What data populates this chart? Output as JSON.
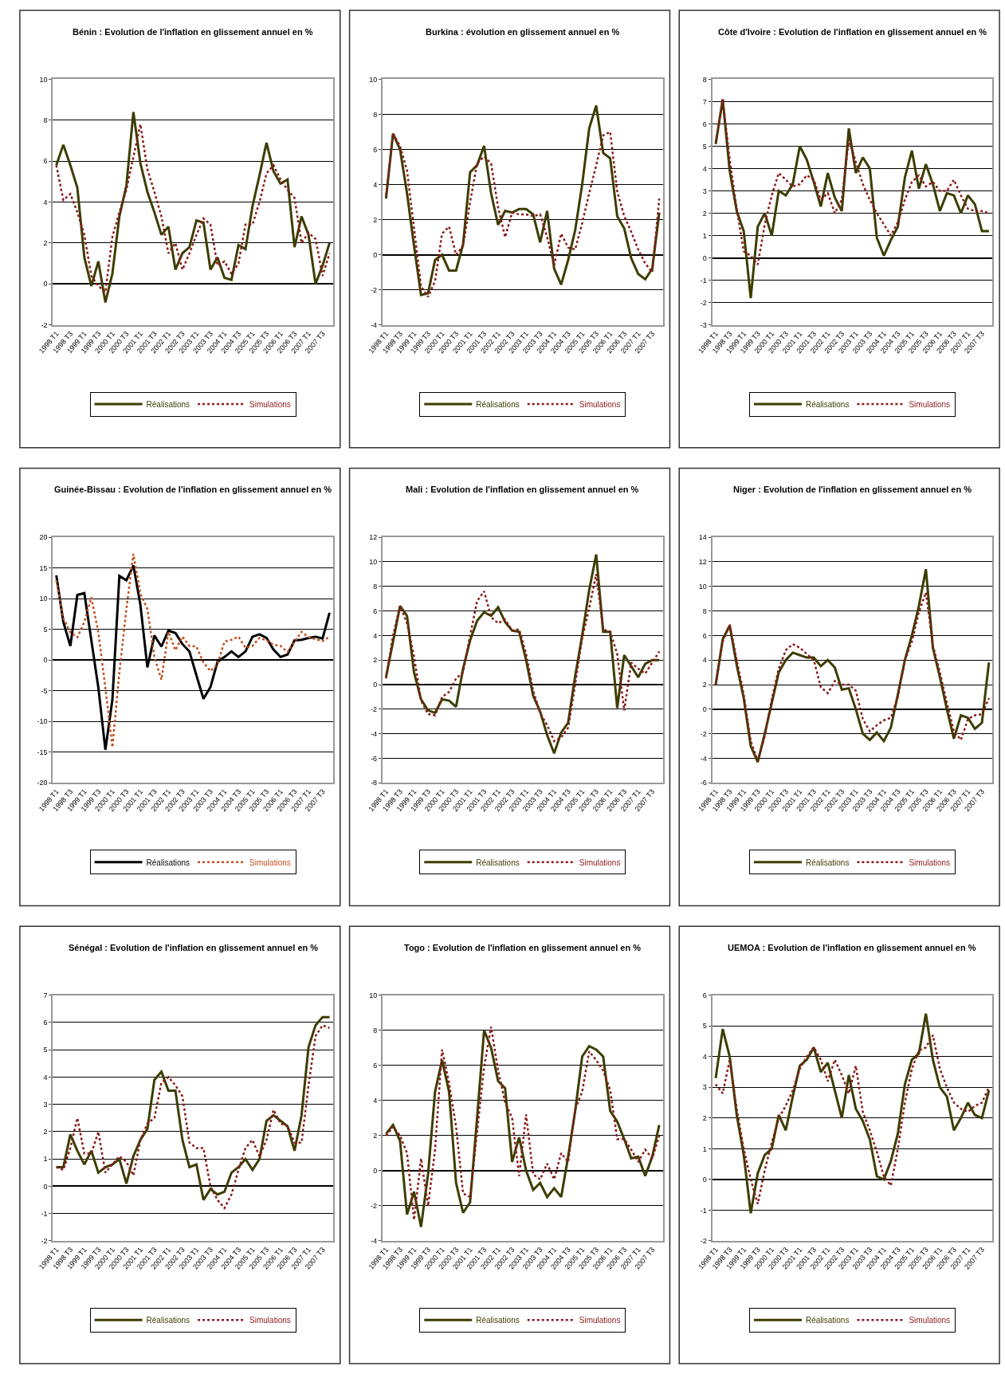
{
  "chart_data": [
    {
      "type": "line",
      "title": "Bénin : Evolution de l'inflation en glissement annuel en %",
      "categories": [
        "1998 T1",
        null,
        "1998 T3",
        null,
        "1999 T1",
        null,
        "1999 T3",
        null,
        "2000 T1",
        null,
        "2000 T3",
        null,
        "2001 T1",
        null,
        "2001 T3",
        null,
        "2002 T1",
        null,
        "2002 T3",
        null,
        "2003 T1",
        null,
        "2003 T3",
        null,
        "2004 T1",
        null,
        "2004 T3",
        null,
        "2005 T1",
        null,
        "2005 T3",
        null,
        "2006 T1",
        null,
        "2006 T3",
        null,
        "2007 T1",
        null,
        "2007 T3",
        null
      ],
      "ylim": [
        -2,
        10
      ],
      "yticks": [
        -2,
        0,
        2,
        4,
        6,
        8,
        10
      ],
      "grid": "y",
      "legend": "bottom",
      "marker": "none",
      "series": [
        {
          "name": "Réalisations",
          "color": "#3d3d00",
          "line_style": "solid",
          "values": [
            5.8,
            6.8,
            5.8,
            4.7,
            1.3,
            -0.1,
            1.1,
            -0.9,
            0.5,
            3.3,
            4.8,
            8.4,
            5.9,
            4.5,
            3.5,
            2.4,
            2.8,
            0.7,
            1.5,
            1.8,
            3.1,
            3.0,
            0.7,
            1.3,
            0.3,
            0.2,
            1.9,
            1.7,
            3.8,
            5.3,
            6.9,
            5.5,
            4.9,
            5.1,
            1.8,
            3.3,
            2.4,
            0.0,
            0.9,
            2.0
          ]
        },
        {
          "name": "Simulations",
          "color": "#8b1a1a",
          "line_style": "dotted",
          "values": [
            5.8,
            4.1,
            4.4,
            3.5,
            2.4,
            0.4,
            -0.1,
            -0.4,
            2.3,
            3.5,
            4.6,
            6.2,
            7.8,
            5.6,
            4.5,
            3.3,
            1.5,
            2.0,
            0.7,
            1.5,
            2.4,
            3.2,
            2.9,
            0.9,
            1.1,
            0.5,
            1.0,
            2.9,
            2.9,
            4.0,
            5.4,
            5.8,
            5.1,
            4.6,
            4.2,
            2.0,
            2.5,
            2.2,
            0.4,
            1.5
          ]
        }
      ]
    },
    {
      "type": "line",
      "title": "Burkina : évolution en glissement annuel en %",
      "categories": [
        "1998 T1",
        null,
        "1998 T3",
        null,
        "1999 T1",
        null,
        "1999 T3",
        null,
        "2000 T1",
        null,
        "2000 T3",
        null,
        "2001 T1",
        null,
        "2001 T3",
        null,
        "2002 T1",
        null,
        "2002 T3",
        null,
        "2003 T1",
        null,
        "2003 T3",
        null,
        "2004 T1",
        null,
        "2004 T3",
        null,
        "2005 T1",
        null,
        "2005 T3",
        null,
        "2006 T1",
        null,
        "2006 T3",
        null,
        "2007 T1",
        null,
        "2007 T3",
        null
      ],
      "ylim": [
        -4,
        10
      ],
      "yticks": [
        -4,
        -2,
        0,
        2,
        4,
        6,
        8,
        10
      ],
      "grid": "y",
      "legend": "bottom",
      "marker": "none",
      "series": [
        {
          "name": "Réalisations",
          "color": "#3d3d00",
          "line_style": "solid",
          "values": [
            3.2,
            6.9,
            6.0,
            3.5,
            0.5,
            -2.3,
            -2.2,
            -0.3,
            0.0,
            -0.9,
            -0.9,
            0.6,
            4.7,
            5.1,
            6.2,
            3.5,
            1.7,
            2.5,
            2.4,
            2.6,
            2.6,
            2.3,
            0.7,
            2.5,
            -0.8,
            -1.7,
            -0.3,
            1.4,
            4.0,
            7.2,
            8.5,
            5.8,
            5.5,
            2.2,
            1.5,
            -0.2,
            -1.1,
            -1.4,
            -0.8,
            2.4
          ]
        },
        {
          "name": "Simulations",
          "color": "#8b1a1a",
          "line_style": "dotted",
          "values": [
            3.4,
            6.9,
            6.2,
            4.8,
            1.5,
            -1.8,
            -2.4,
            -1.5,
            1.2,
            1.6,
            0.0,
            0.5,
            3.0,
            5.2,
            5.6,
            5.2,
            2.7,
            1.0,
            2.4,
            2.3,
            2.3,
            2.2,
            2.3,
            1.0,
            -0.6,
            1.2,
            0.4,
            0.3,
            1.8,
            3.5,
            5.1,
            6.8,
            7.0,
            3.6,
            2.2,
            1.3,
            0.3,
            -0.5,
            -1.0,
            3.2
          ]
        }
      ]
    },
    {
      "type": "line",
      "title": "Côte d'Ivoire : Evolution de l'inflation en glissement annuel en %",
      "categories": [
        "1998 T1",
        null,
        "1998 T3",
        null,
        "1999 T1",
        null,
        "1999 T3",
        null,
        "2000 T1",
        null,
        "2000 T3",
        null,
        "2001 T1",
        null,
        "2001 T3",
        null,
        "2002 T1",
        null,
        "2002 T3",
        null,
        "2003 T1",
        null,
        "2003 T3",
        null,
        "2004 T1",
        null,
        "2004 T3",
        null,
        "2005 T1",
        null,
        "2005 T3",
        null,
        "2006 T1",
        null,
        "2006 T3",
        null,
        "2007 T1",
        null,
        "2007 T3",
        null
      ],
      "ylim": [
        -3,
        8
      ],
      "yticks": [
        -3,
        -2,
        -1,
        0,
        1,
        2,
        3,
        4,
        5,
        6,
        7,
        8
      ],
      "grid": "y",
      "legend": "bottom",
      "marker": "none",
      "series": [
        {
          "name": "Réalisations",
          "color": "#3d3d00",
          "line_style": "solid",
          "values": [
            5.1,
            7.1,
            3.9,
            2.1,
            1.2,
            -1.8,
            1.4,
            2.0,
            1.0,
            3.0,
            2.8,
            3.3,
            5.0,
            4.4,
            3.4,
            2.3,
            3.8,
            2.7,
            2.1,
            5.8,
            3.8,
            4.5,
            4.0,
            0.9,
            0.1,
            0.8,
            1.4,
            3.6,
            4.8,
            3.1,
            4.2,
            3.3,
            2.1,
            2.9,
            2.8,
            2.0,
            2.8,
            2.4,
            1.2,
            1.2
          ]
        },
        {
          "name": "Simulations",
          "color": "#8b1a1a",
          "line_style": "dotted",
          "values": [
            5.2,
            7.1,
            4.4,
            2.2,
            0.3,
            0.1,
            -0.3,
            1.5,
            2.8,
            3.8,
            3.5,
            3.2,
            3.3,
            3.7,
            3.5,
            2.6,
            2.9,
            2.0,
            2.6,
            5.3,
            4.3,
            3.3,
            2.6,
            2.0,
            1.5,
            1.0,
            1.6,
            2.6,
            3.4,
            3.7,
            3.2,
            3.4,
            3.0,
            3.0,
            3.5,
            2.8,
            2.2,
            2.1,
            2.1,
            2.0
          ]
        }
      ]
    },
    {
      "type": "line",
      "title": "Guinée-Bissau : Evolution de l'inflation en glissement annuel en %",
      "categories": [
        "1998 T1",
        null,
        "1998 T3",
        null,
        "1999 T1",
        null,
        "1999 T3",
        null,
        "2000 T1",
        null,
        "2000 T3",
        null,
        "2001 T1",
        null,
        "2001 T3",
        null,
        "2002 T1",
        null,
        "2002 T3",
        null,
        "2003 T1",
        null,
        "2003 T3",
        null,
        "2004 T1",
        null,
        "2004 T3",
        null,
        "2005 T1",
        null,
        "2005 T3",
        null,
        "2006 T1",
        null,
        "2006 T3",
        null,
        "2007 T1",
        null,
        "2007 T3",
        null
      ],
      "ylim": [
        -20,
        20
      ],
      "yticks": [
        -20,
        -15,
        -10,
        -5,
        0,
        5,
        10,
        15,
        20
      ],
      "grid": "y",
      "legend": "bottom",
      "marker": "none",
      "series": [
        {
          "name": "Réalisations",
          "color": "#000000",
          "line_style": "solid",
          "values": [
            13.8,
            6.2,
            2.3,
            10.6,
            10.9,
            3.2,
            -4.5,
            -14.6,
            -6.5,
            13.7,
            13.0,
            15.4,
            9.0,
            -1.2,
            4.0,
            2.2,
            4.8,
            4.4,
            2.6,
            1.4,
            -2.5,
            -6.3,
            -4.4,
            -0.3,
            0.5,
            1.4,
            0.5,
            1.4,
            3.8,
            4.2,
            3.6,
            1.7,
            0.5,
            0.9,
            3.2,
            3.3,
            3.6,
            3.8,
            3.5,
            7.7
          ]
        },
        {
          "name": "Simulations",
          "color": "#c0501f",
          "line_style": "dotted",
          "values": [
            13.0,
            6.8,
            4.5,
            3.7,
            6.2,
            10.2,
            4.5,
            -4.5,
            -14.2,
            -2.0,
            8.3,
            17.3,
            10.8,
            8.3,
            0.5,
            -3.2,
            4.6,
            1.6,
            3.8,
            2.3,
            2.2,
            -0.4,
            -1.8,
            -0.7,
            3.0,
            3.3,
            3.8,
            2.0,
            2.3,
            3.6,
            3.2,
            2.5,
            2.3,
            1.3,
            3.0,
            4.6,
            3.7,
            3.4,
            3.1,
            3.8
          ]
        }
      ]
    },
    {
      "type": "line",
      "title": "Mali : Evolution de l'inflation en glissement annuel en %",
      "categories": [
        "1998 T1",
        null,
        "1998 T3",
        null,
        "1999 T1",
        null,
        "1999 T3",
        null,
        "2000 T1",
        null,
        "2000 T3",
        null,
        "2001 T1",
        null,
        "2001 T3",
        null,
        "2002 T1",
        null,
        "2002 T3",
        null,
        "2003 T1",
        null,
        "2003 T3",
        null,
        "2004 T1",
        null,
        "2004 T3",
        null,
        "2005 T1",
        null,
        "2005 T3",
        null,
        "2006 T1",
        null,
        "2006 T3",
        null,
        "2007 T1",
        null,
        "2007 T3",
        null
      ],
      "ylim": [
        -8,
        12
      ],
      "yticks": [
        -8,
        -6,
        -4,
        -2,
        0,
        2,
        4,
        6,
        8,
        10,
        12
      ],
      "grid": "y",
      "legend": "bottom",
      "marker": "none",
      "series": [
        {
          "name": "Réalisations",
          "color": "#3d3d00",
          "line_style": "solid",
          "values": [
            0.6,
            3.5,
            6.4,
            5.6,
            1.0,
            -1.2,
            -2.1,
            -2.3,
            -1.2,
            -1.3,
            -1.8,
            1.3,
            3.6,
            5.2,
            5.9,
            5.6,
            6.3,
            5.1,
            4.4,
            4.3,
            2.0,
            -0.9,
            -2.2,
            -4.1,
            -5.6,
            -3.9,
            -3.1,
            0.7,
            4.0,
            7.7,
            10.6,
            4.3,
            4.3,
            -1.9,
            2.4,
            1.5,
            0.6,
            1.7,
            2.0,
            2.0
          ]
        },
        {
          "name": "Simulations",
          "color": "#8b1a1a",
          "line_style": "dotted",
          "values": [
            0.5,
            4.0,
            6.4,
            5.0,
            2.3,
            -1.3,
            -2.4,
            -2.5,
            -1.0,
            -0.6,
            0.5,
            1.0,
            4.0,
            6.8,
            7.6,
            5.5,
            5.0,
            5.3,
            4.4,
            4.5,
            2.5,
            -0.5,
            -2.3,
            -3.3,
            -4.6,
            -4.3,
            -3.5,
            0.0,
            3.8,
            6.2,
            9.0,
            4.5,
            4.3,
            2.5,
            -2.1,
            1.8,
            1.3,
            0.9,
            1.8,
            2.7
          ]
        }
      ]
    },
    {
      "type": "line",
      "title": "Niger : Evolution de l'inflation en glissement annuel en %",
      "categories": [
        "1998 T1",
        null,
        "1998 T3",
        null,
        "1999 T1",
        null,
        "1999 T3",
        null,
        "2000 T1",
        null,
        "2000 T3",
        null,
        "2001 T1",
        null,
        "2001 T3",
        null,
        "2002 T1",
        null,
        "2002 T3",
        null,
        "2003 T1",
        null,
        "2003 T3",
        null,
        "2004 T1",
        null,
        "2004 T3",
        null,
        "2005 T1",
        null,
        "2005 T3",
        null,
        "2006 T1",
        null,
        "2006 T3",
        null,
        "2007 T1",
        null,
        "2007 T3",
        null
      ],
      "ylim": [
        -6,
        14
      ],
      "yticks": [
        -6,
        -4,
        -2,
        0,
        2,
        4,
        6,
        8,
        10,
        12,
        14
      ],
      "grid": "y",
      "legend": "bottom",
      "marker": "none",
      "series": [
        {
          "name": "Réalisations",
          "color": "#3d3d00",
          "line_style": "solid",
          "values": [
            2.0,
            5.7,
            6.8,
            3.6,
            0.9,
            -3.0,
            -4.3,
            -2.0,
            0.5,
            3.0,
            4.0,
            4.6,
            4.4,
            4.2,
            4.2,
            3.5,
            4.0,
            3.4,
            1.6,
            1.7,
            0.0,
            -2.0,
            -2.5,
            -1.9,
            -2.6,
            -1.5,
            1.2,
            4.0,
            6.0,
            8.4,
            11.4,
            5.0,
            2.6,
            0.0,
            -2.4,
            -0.5,
            -0.7,
            -1.6,
            -1.1,
            3.8
          ]
        },
        {
          "name": "Simulations",
          "color": "#8b1a1a",
          "line_style": "dotted",
          "values": [
            2.0,
            5.5,
            6.9,
            4.0,
            1.2,
            -2.6,
            -4.2,
            -2.2,
            0.8,
            3.3,
            4.8,
            5.3,
            5.0,
            4.5,
            4.0,
            1.8,
            1.3,
            2.3,
            2.0,
            2.0,
            1.5,
            -0.8,
            -1.8,
            -1.3,
            -0.9,
            -0.7,
            1.0,
            4.0,
            5.5,
            7.9,
            9.5,
            5.2,
            3.0,
            0.5,
            -1.8,
            -2.5,
            -0.8,
            -0.5,
            -0.4,
            0.9
          ]
        }
      ]
    },
    {
      "type": "line",
      "title": "Sénégal : Evolution de l'inflation en glissement annuel en %",
      "categories": [
        "1998 T1",
        null,
        "1998 T3",
        null,
        "1999 T1",
        null,
        "1999 T3",
        null,
        "2000 T1",
        null,
        "2000 T3",
        null,
        "2001 T1",
        null,
        "2001 T3",
        null,
        "2002 T1",
        null,
        "2002 T3",
        null,
        "2003 T1",
        null,
        "2003 T3",
        null,
        "2004 T1",
        null,
        "2004 T3",
        null,
        "2005 T1",
        null,
        "2005 T3",
        null,
        "2006 T1",
        null,
        "2006 T3",
        null,
        "2007 T1",
        null,
        "2007 T3",
        null
      ],
      "ylim": [
        -2,
        7
      ],
      "yticks": [
        -2,
        -1,
        0,
        1,
        2,
        3,
        4,
        5,
        6,
        7
      ],
      "grid": "y",
      "legend": "bottom",
      "marker": "none",
      "series": [
        {
          "name": "Réalisations",
          "color": "#3d3d00",
          "line_style": "solid",
          "values": [
            0.7,
            0.7,
            1.9,
            1.3,
            0.8,
            1.3,
            0.5,
            0.7,
            0.8,
            1.0,
            0.1,
            1.1,
            1.7,
            2.1,
            3.9,
            4.2,
            3.5,
            3.5,
            1.7,
            0.7,
            0.8,
            -0.5,
            -0.1,
            -0.3,
            -0.2,
            0.5,
            0.7,
            1.0,
            0.6,
            1.0,
            2.4,
            2.6,
            2.4,
            2.2,
            1.3,
            2.6,
            5.1,
            5.9,
            6.2,
            6.2
          ]
        },
        {
          "name": "Simulations",
          "color": "#8b1a1a",
          "line_style": "dotted",
          "values": [
            0.7,
            0.6,
            1.4,
            2.5,
            1.2,
            1.2,
            2.0,
            0.5,
            0.8,
            1.1,
            0.9,
            0.4,
            1.7,
            2.3,
            2.5,
            3.8,
            4.0,
            3.7,
            3.3,
            1.6,
            1.4,
            1.4,
            0.0,
            -0.5,
            -0.8,
            -0.3,
            0.6,
            1.4,
            1.7,
            1.1,
            1.7,
            2.8,
            2.3,
            2.2,
            1.6,
            1.6,
            3.7,
            5.5,
            5.9,
            5.8
          ]
        }
      ]
    },
    {
      "type": "line",
      "title": "Togo : Evolution de l'inflation en glissement annuel en %",
      "categories": [
        "1998 T1",
        null,
        "1998 T3",
        null,
        "1999 T1",
        null,
        "1999 T3",
        null,
        "2000 T1",
        null,
        "2000 T3",
        null,
        "2001 T1",
        null,
        "2001 T3",
        null,
        "2002 T1",
        null,
        "2002 T3",
        null,
        "2003 T1",
        null,
        "2003 T3",
        null,
        "2004 T1",
        null,
        "2004 T3",
        null,
        "2005 T1",
        null,
        "2005 T3",
        null,
        "2006 T1",
        null,
        "2006 T3",
        null,
        "2007 T1",
        null,
        "2007 T3",
        null
      ],
      "ylim": [
        -4,
        10
      ],
      "yticks": [
        -4,
        -2,
        0,
        2,
        4,
        6,
        8,
        10
      ],
      "grid": "y",
      "legend": "bottom",
      "marker": "none",
      "series": [
        {
          "name": "Réalisations",
          "color": "#3d3d00",
          "line_style": "solid",
          "values": [
            2.1,
            2.6,
            1.7,
            -2.5,
            -1.2,
            -3.2,
            -0.2,
            4.5,
            6.3,
            4.5,
            -0.7,
            -2.4,
            -1.8,
            3.0,
            8.0,
            7.0,
            5.1,
            4.7,
            0.5,
            1.9,
            0.0,
            -1.1,
            -0.7,
            -1.5,
            -1.0,
            -1.5,
            0.8,
            3.4,
            6.5,
            7.1,
            6.9,
            6.5,
            3.4,
            2.8,
            1.8,
            0.7,
            0.8,
            -0.3,
            0.8,
            2.6
          ]
        },
        {
          "name": "Simulations",
          "color": "#8b1a1a",
          "line_style": "dotted",
          "values": [
            2.0,
            2.5,
            2.0,
            1.0,
            -2.8,
            0.7,
            -2.0,
            1.2,
            6.9,
            5.0,
            2.5,
            -1.3,
            -1.5,
            2.2,
            5.9,
            8.2,
            5.7,
            3.9,
            3.0,
            -0.3,
            3.2,
            -0.2,
            -0.5,
            0.4,
            -0.5,
            1.0,
            0.5,
            3.5,
            4.5,
            6.8,
            6.3,
            5.7,
            4.6,
            1.8,
            1.8,
            1.2,
            0.5,
            1.2,
            0.7,
            2.0
          ]
        }
      ]
    },
    {
      "type": "line",
      "title": "UEMOA : Evolution de l'inflation en glissement annuel en %",
      "categories": [
        "1998 T1",
        null,
        "1998 T3",
        null,
        "1999 T1",
        null,
        "1999 T3",
        null,
        "2000 T1",
        null,
        "2000 T3",
        null,
        "2001 T1",
        null,
        "2001 T3",
        null,
        "2002 T1",
        null,
        "2002 T3",
        null,
        "2003 T1",
        null,
        "2003 T3",
        null,
        "2004 T1",
        null,
        "2004 T3",
        null,
        "2005 T1",
        null,
        "2005 T3",
        null,
        "2006 T1",
        null,
        "2006 T3",
        null,
        "2007 T1",
        null,
        "2007 T3",
        null
      ],
      "ylim": [
        -2,
        6
      ],
      "yticks": [
        -2,
        -1,
        0,
        1,
        2,
        3,
        4,
        5,
        6
      ],
      "grid": "y",
      "legend": "bottom",
      "marker": "none",
      "series": [
        {
          "name": "Réalisations",
          "color": "#3d3d00",
          "line_style": "solid",
          "values": [
            3.3,
            4.9,
            4.0,
            2.1,
            0.8,
            -1.1,
            0.2,
            0.8,
            1.0,
            2.1,
            1.6,
            2.7,
            3.7,
            3.9,
            4.3,
            3.5,
            3.8,
            2.9,
            2.0,
            3.4,
            2.3,
            1.9,
            1.3,
            0.1,
            0.0,
            0.6,
            1.5,
            3.1,
            3.9,
            4.1,
            5.4,
            3.9,
            3.0,
            2.7,
            1.6,
            2.0,
            2.5,
            2.1,
            2.0,
            2.9
          ]
        },
        {
          "name": "Simulations",
          "color": "#8b1a1a",
          "line_style": "dotted",
          "values": [
            3.1,
            2.8,
            3.9,
            2.3,
            1.0,
            0.0,
            -0.8,
            0.3,
            1.2,
            2.0,
            2.4,
            2.9,
            3.6,
            4.0,
            4.3,
            3.9,
            3.2,
            3.9,
            3.4,
            2.8,
            3.7,
            2.2,
            1.6,
            0.9,
            0.1,
            -0.2,
            1.0,
            2.5,
            3.6,
            4.2,
            4.3,
            4.7,
            3.6,
            3.0,
            2.5,
            2.3,
            2.2,
            2.4,
            2.5,
            3.0
          ]
        }
      ]
    }
  ]
}
